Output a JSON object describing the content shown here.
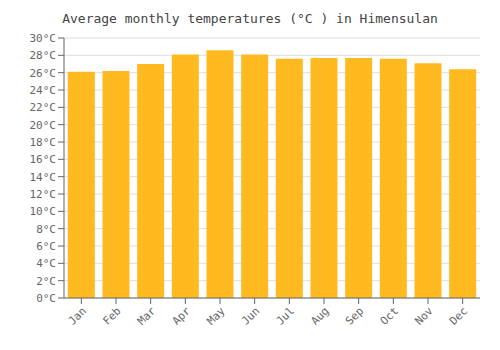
{
  "chart_data": {
    "type": "bar",
    "title": "Average monthly temperatures (°C ) in Himensulan",
    "categories": [
      "Jan",
      "Feb",
      "Mar",
      "Apr",
      "May",
      "Jun",
      "Jul",
      "Aug",
      "Sep",
      "Oct",
      "Nov",
      "Dec"
    ],
    "values": [
      26.1,
      26.2,
      27.0,
      28.1,
      28.6,
      28.1,
      27.6,
      27.7,
      27.7,
      27.6,
      27.1,
      26.4
    ],
    "color": "#FFBA20",
    "ylim": [
      0,
      30
    ],
    "yticks": [
      {
        "value": 0,
        "label": "0°C"
      },
      {
        "value": 2,
        "label": "2°C"
      },
      {
        "value": 4,
        "label": "4°C"
      },
      {
        "value": 6,
        "label": "6°C"
      },
      {
        "value": 8,
        "label": "8°C"
      },
      {
        "value": 10,
        "label": "10°C"
      },
      {
        "value": 12,
        "label": "12°C"
      },
      {
        "value": 14,
        "label": "14°C"
      },
      {
        "value": 16,
        "label": "16°C"
      },
      {
        "value": 18,
        "label": "18°C"
      },
      {
        "value": 20,
        "label": "20°C"
      },
      {
        "value": 22,
        "label": "22°C"
      },
      {
        "value": 24,
        "label": "24°C"
      },
      {
        "value": 26,
        "label": "26°C"
      },
      {
        "value": 28,
        "label": "28°C"
      },
      {
        "value": 30,
        "label": "30°C"
      }
    ],
    "grid": true
  }
}
